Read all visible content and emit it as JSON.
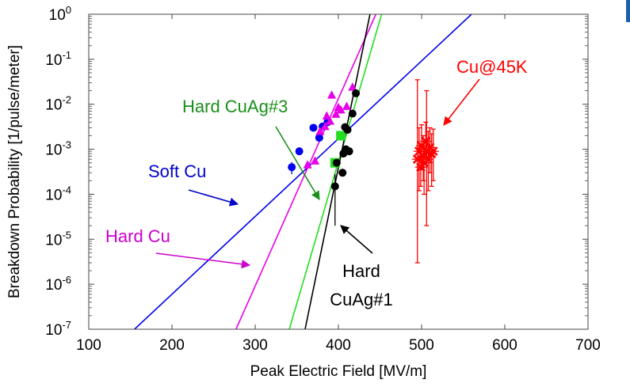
{
  "chart_data": {
    "type": "scatter",
    "xlabel": "Peak Electric Field [MV/m]",
    "ylabel": "Breakdown Probability [1/pulse/meter]",
    "xlim": [
      100,
      700
    ],
    "ylim_exponent": [
      -7,
      0
    ],
    "yscale": "log",
    "x_ticks": [
      "100",
      "200",
      "300",
      "400",
      "500",
      "600",
      "700"
    ],
    "y_ticks": [
      {
        "base": "10",
        "exp": "0"
      },
      {
        "base": "10",
        "exp": "-1"
      },
      {
        "base": "10",
        "exp": "-2"
      },
      {
        "base": "10",
        "exp": "-3"
      },
      {
        "base": "10",
        "exp": "-4"
      },
      {
        "base": "10",
        "exp": "-5"
      },
      {
        "base": "10",
        "exp": "-6"
      },
      {
        "base": "10",
        "exp": "-7"
      }
    ],
    "grid": false,
    "series": [
      {
        "name": "Soft Cu",
        "color": "#0000ee",
        "marker": "circle",
        "points": [
          {
            "x": 344,
            "y": 0.0004,
            "err": 0.00012
          },
          {
            "x": 353,
            "y": 0.0009
          },
          {
            "x": 370,
            "y": 0.003
          },
          {
            "x": 377,
            "y": 0.0018
          },
          {
            "x": 381,
            "y": 0.0032
          },
          {
            "x": 387,
            "y": 0.004
          }
        ],
        "fit": [
          {
            "x": 155,
            "y": 1e-07
          },
          {
            "x": 560,
            "y": 1
          }
        ]
      },
      {
        "name": "Hard Cu",
        "color": "#e800e8",
        "marker": "triangle",
        "points": [
          {
            "x": 363,
            "y": 0.00045
          },
          {
            "x": 372,
            "y": 0.00055
          },
          {
            "x": 378,
            "y": 0.0025
          },
          {
            "x": 384,
            "y": 0.0032
          },
          {
            "x": 386,
            "y": 0.0055
          },
          {
            "x": 390,
            "y": 0.0042
          },
          {
            "x": 392,
            "y": 0.016
          },
          {
            "x": 397,
            "y": 0.006
          },
          {
            "x": 400,
            "y": 0.0085
          },
          {
            "x": 403,
            "y": 0.0075
          },
          {
            "x": 410,
            "y": 0.009
          },
          {
            "x": 417,
            "y": 0.024
          }
        ],
        "fit": [
          {
            "x": 277,
            "y": 1e-07
          },
          {
            "x": 445,
            "y": 1
          }
        ]
      },
      {
        "name": "Hard CuAg#3",
        "color": "#22dd22",
        "marker": "square",
        "points": [
          {
            "x": 396,
            "y": 0.0005
          },
          {
            "x": 403,
            "y": 0.002
          }
        ],
        "fit": [
          {
            "x": 341,
            "y": 1e-07
          },
          {
            "x": 452,
            "y": 1
          }
        ]
      },
      {
        "name": "Hard CuAg#1",
        "color": "#000000",
        "marker": "circle",
        "points": [
          {
            "x": 396,
            "y": 0.00015,
            "err": 0.00013
          },
          {
            "x": 398,
            "y": 0.0005
          },
          {
            "x": 405,
            "y": 0.0003
          },
          {
            "x": 406,
            "y": 0.0008
          },
          {
            "x": 408,
            "y": 0.0031
          },
          {
            "x": 409,
            "y": 0.001
          },
          {
            "x": 411,
            "y": 0.0027
          },
          {
            "x": 413,
            "y": 0.0009
          },
          {
            "x": 417,
            "y": 0.0062
          },
          {
            "x": 421,
            "y": 0.0175
          }
        ],
        "fit": [
          {
            "x": 360,
            "y": 1e-07
          },
          {
            "x": 438,
            "y": 1
          }
        ]
      },
      {
        "name": "Cu@45K",
        "color": "#ff0000",
        "marker": "x",
        "points": [
          {
            "x": 495,
            "y": 0.0006,
            "ylow": 3e-06,
            "yhigh": 0.035
          },
          {
            "x": 497,
            "y": 0.0009,
            "ylow": 0.00012,
            "yhigh": 0.003
          },
          {
            "x": 499,
            "y": 0.0004,
            "ylow": 0.00015,
            "yhigh": 0.001
          },
          {
            "x": 500,
            "y": 0.0012,
            "ylow": 0.00035,
            "yhigh": 0.0035
          },
          {
            "x": 502,
            "y": 0.0007,
            "ylow": 0.0002,
            "yhigh": 0.002
          },
          {
            "x": 503,
            "y": 0.0005,
            "ylow": 0.0001,
            "yhigh": 0.0015
          },
          {
            "x": 505,
            "y": 0.0015,
            "ylow": 0.0005,
            "yhigh": 0.004
          },
          {
            "x": 506,
            "y": 0.0009,
            "ylow": 2e-05,
            "yhigh": 0.02
          },
          {
            "x": 508,
            "y": 0.0006,
            "ylow": 0.00012,
            "yhigh": 0.0025
          },
          {
            "x": 510,
            "y": 0.0011,
            "ylow": 0.0003,
            "yhigh": 0.003
          },
          {
            "x": 512,
            "y": 0.0008,
            "ylow": 0.00015,
            "yhigh": 0.0022
          },
          {
            "x": 514,
            "y": 0.0009,
            "ylow": 0.0002,
            "yhigh": 0.0028
          }
        ]
      }
    ],
    "annotations": [
      {
        "id": "hard-cuag3",
        "lines": [
          "Hard CuAg#3"
        ],
        "color": "#1a8f1a"
      },
      {
        "id": "soft-cu",
        "lines": [
          "Soft Cu"
        ],
        "color": "#0000cc"
      },
      {
        "id": "hard-cu",
        "lines": [
          "Hard Cu"
        ],
        "color": "#cc00cc"
      },
      {
        "id": "hard-cuag1",
        "lines": [
          "Hard",
          "CuAg#1"
        ],
        "color": "#000000"
      },
      {
        "id": "cu45k",
        "lines": [
          "Cu@45K"
        ],
        "color": "#ff0000"
      }
    ]
  }
}
